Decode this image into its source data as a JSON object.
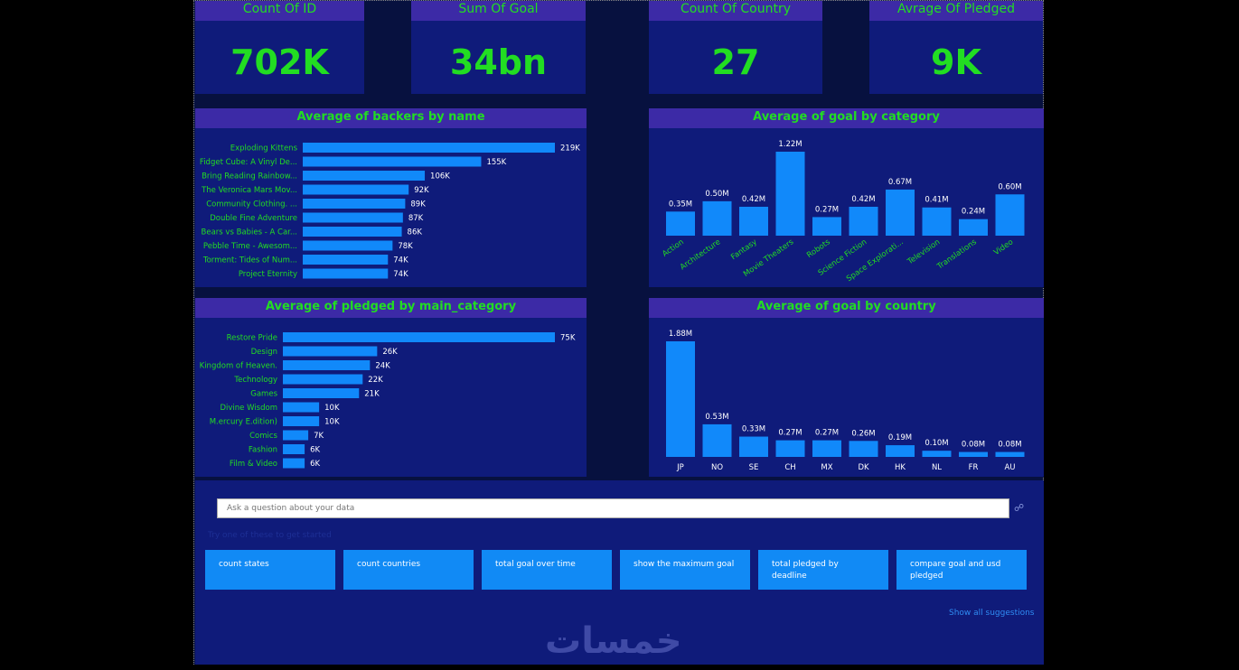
{
  "kpis": [
    {
      "label": "Count Of ID",
      "value": "702K"
    },
    {
      "label": "Sum Of Goal",
      "value": "34bn"
    },
    {
      "label": "Count Of Country",
      "value": "27"
    },
    {
      "label": "Avrage Of Pledged",
      "value": "9K"
    }
  ],
  "colors": {
    "bar": "#1189fa",
    "label_green": "#22dd22",
    "panel": "#0f1b7a",
    "header": "#3c2aa6"
  },
  "chart_data": [
    {
      "type": "bar",
      "orientation": "horizontal",
      "title": "Average of backers by name",
      "categories": [
        "Exploding Kittens",
        "Fidget Cube: A Vinyl De...",
        "Bring Reading Rainbow...",
        "The Veronica Mars Mov...",
        "Community Clothing. ...",
        "Double Fine Adventure",
        "Bears vs Babies - A Car...",
        "Pebble Time - Awesom...",
        "Torment: Tides of Num...",
        "Project Eternity"
      ],
      "values": [
        219,
        155,
        106,
        92,
        89,
        87,
        86,
        78,
        74,
        74
      ],
      "labels": [
        "219K",
        "155K",
        "106K",
        "92K",
        "89K",
        "87K",
        "86K",
        "78K",
        "74K",
        "74K"
      ]
    },
    {
      "type": "bar",
      "orientation": "vertical",
      "title": "Average of goal by category",
      "categories": [
        "Action",
        "Architecture",
        "Fantasy",
        "Movie Theaters",
        "Robots",
        "Science Fiction",
        "Space Explorati...",
        "Television",
        "Translations",
        "Video"
      ],
      "values": [
        0.35,
        0.5,
        0.42,
        1.22,
        0.27,
        0.42,
        0.67,
        0.41,
        0.24,
        0.6
      ],
      "labels": [
        "0.35M",
        "0.50M",
        "0.42M",
        "1.22M",
        "0.27M",
        "0.42M",
        "0.67M",
        "0.41M",
        "0.24M",
        "0.60M"
      ]
    },
    {
      "type": "bar",
      "orientation": "horizontal",
      "title": "Average of pledged by main_category",
      "categories": [
        "Restore Pride",
        "Design",
        "Kingdom of Heaven.",
        "Technology",
        "Games",
        "Divine Wisdom",
        "M.ercury E.dition)",
        "Comics",
        "Fashion",
        "Film & Video"
      ],
      "values": [
        75,
        26,
        24,
        22,
        21,
        10,
        10,
        7,
        6,
        6
      ],
      "labels": [
        "75K",
        "26K",
        "24K",
        "22K",
        "21K",
        "10K",
        "10K",
        "7K",
        "6K",
        "6K"
      ]
    },
    {
      "type": "bar",
      "orientation": "vertical",
      "title": "Average of goal by country",
      "categories": [
        "JP",
        "NO",
        "SE",
        "CH",
        "MX",
        "DK",
        "HK",
        "NL",
        "FR",
        "AU"
      ],
      "values": [
        1.88,
        0.53,
        0.33,
        0.27,
        0.27,
        0.26,
        0.19,
        0.1,
        0.08,
        0.08
      ],
      "labels": [
        "1.88M",
        "0.53M",
        "0.33M",
        "0.27M",
        "0.27M",
        "0.26M",
        "0.19M",
        "0.10M",
        "0.08M",
        "0.08M"
      ]
    }
  ],
  "qa": {
    "placeholder": "Ask a question about your data",
    "hint": "Try one of these to get started",
    "suggestions": [
      "count states",
      "count countries",
      "total goal over time",
      "show the maximum goal",
      "total pledged by deadline",
      "compare goal and usd pledged"
    ],
    "show_all": "Show all suggestions"
  },
  "watermark": "خمسات"
}
